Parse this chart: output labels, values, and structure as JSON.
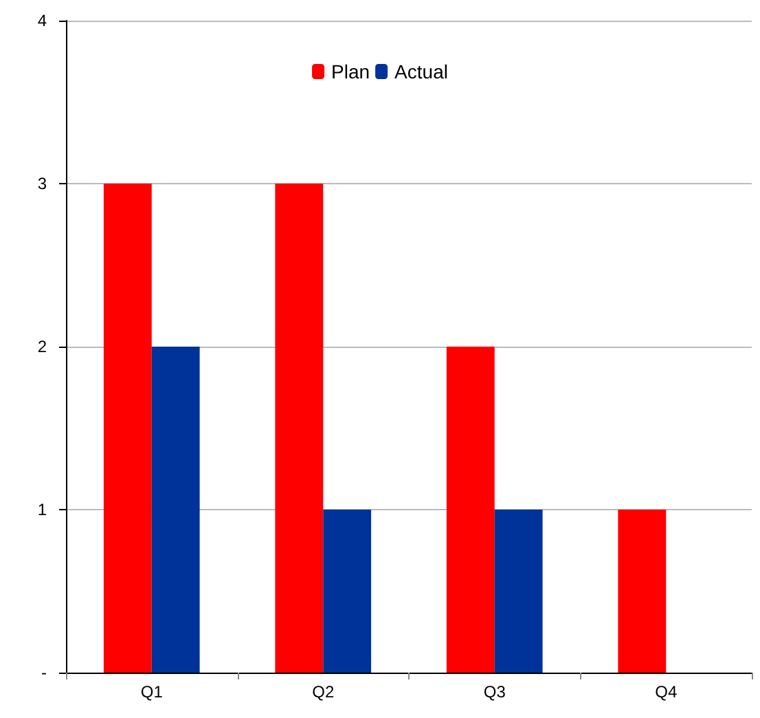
{
  "chart_data": {
    "type": "bar",
    "categories": [
      "Q1",
      "Q2",
      "Q3",
      "Q4"
    ],
    "series": [
      {
        "name": "Plan",
        "color": "#ff0000",
        "values": [
          3,
          3,
          2,
          1
        ]
      },
      {
        "name": "Actual",
        "color": "#003399",
        "values": [
          2,
          1,
          1,
          0
        ]
      }
    ],
    "ylim": [
      0,
      4
    ],
    "yticks": [
      {
        "value": 0,
        "label": "-"
      },
      1,
      2,
      3,
      4
    ],
    "grid": "y",
    "legend": "top"
  }
}
